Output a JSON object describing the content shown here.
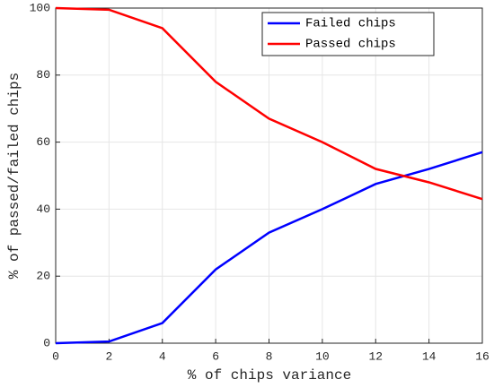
{
  "chart_data": {
    "type": "line",
    "xlabel": "% of chips variance",
    "ylabel": "% of passed/failed chips",
    "x": [
      0,
      2,
      4,
      6,
      8,
      10,
      12,
      14,
      16
    ],
    "series": [
      {
        "name": "Failed chips",
        "color": "#0000ff",
        "values": [
          0,
          0.5,
          6,
          22,
          33,
          40,
          47.5,
          52,
          57
        ]
      },
      {
        "name": "Passed chips",
        "color": "#ff0000",
        "values": [
          100,
          99.5,
          94,
          78,
          67,
          60,
          52,
          48,
          43
        ]
      }
    ],
    "xlim": [
      0,
      16
    ],
    "xticks": [
      0,
      2,
      4,
      6,
      8,
      10,
      12,
      14,
      16
    ],
    "ylim": [
      0,
      100
    ],
    "yticks": [
      0,
      20,
      40,
      60,
      80,
      100
    ],
    "grid": true,
    "legend": "upper right"
  }
}
